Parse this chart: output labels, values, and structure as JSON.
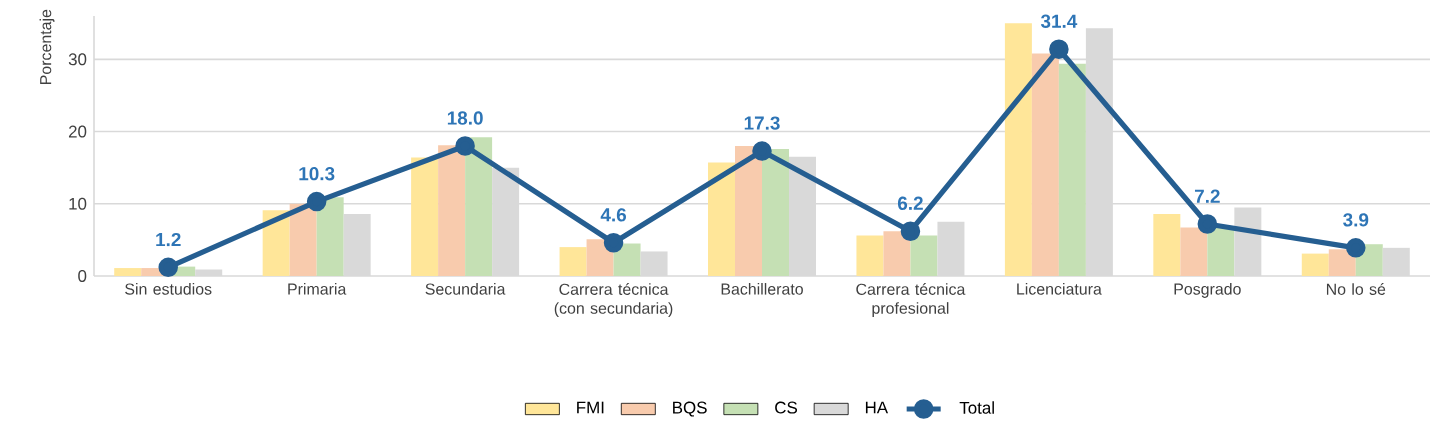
{
  "chart_data": {
    "type": "bar",
    "ylabel": "Porcentaje",
    "categories": [
      "Sin estudios",
      "Primaria",
      "Secundaria",
      "Carrera técnica (con secundaria)",
      "Bachillerato",
      "Carrera técnica profesional",
      "Licenciatura",
      "Posgrado",
      "No lo sé"
    ],
    "series": [
      {
        "name": "FMI",
        "color": "#ffe699",
        "values": [
          1.1,
          9.1,
          16.4,
          4.0,
          15.7,
          5.6,
          35.0,
          8.6,
          3.1
        ]
      },
      {
        "name": "BQS",
        "color": "#f8cbad",
        "values": [
          1.1,
          10.0,
          18.1,
          5.1,
          18.0,
          6.2,
          30.8,
          6.7,
          3.7
        ]
      },
      {
        "name": "CS",
        "color": "#c5e0b4",
        "values": [
          1.3,
          10.9,
          19.2,
          4.5,
          17.6,
          5.6,
          29.4,
          6.9,
          4.4
        ]
      },
      {
        "name": "HA",
        "color": "#d9d9d9",
        "values": [
          0.9,
          8.6,
          15.0,
          3.4,
          16.5,
          7.5,
          34.3,
          9.5,
          3.9
        ]
      },
      {
        "name": "Total",
        "type": "line",
        "marker": "circle",
        "color": "#255e91",
        "values": [
          1.2,
          10.3,
          18.0,
          4.6,
          17.3,
          6.2,
          31.4,
          7.2,
          3.9
        ],
        "value_labels": [
          "1.2",
          "10.3",
          "18.0",
          "4.6",
          "17.3",
          "6.2",
          "31.4",
          "7.2",
          "3.9"
        ]
      }
    ],
    "ylim": [
      0,
      36
    ],
    "yticks": [
      0,
      10,
      20,
      30
    ],
    "grid": "y",
    "legend": "bottom"
  }
}
